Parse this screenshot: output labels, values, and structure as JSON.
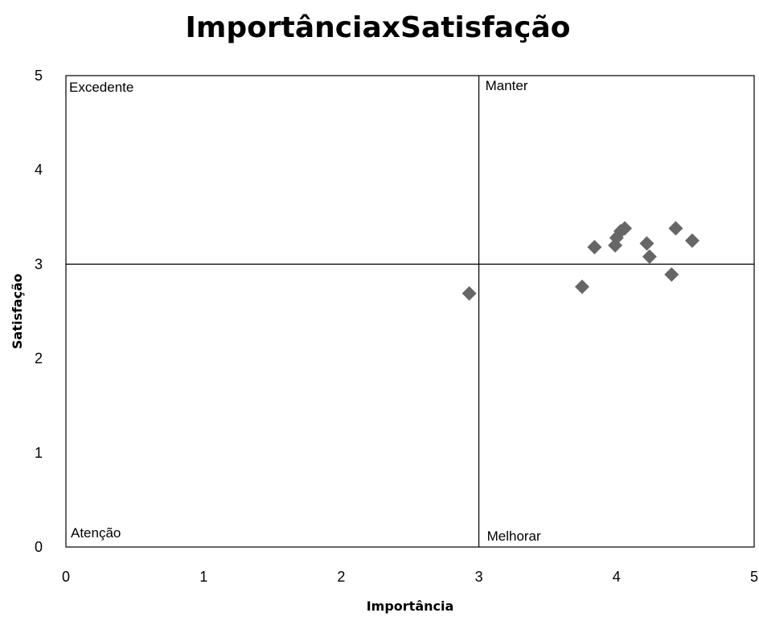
{
  "chart_data": {
    "type": "scatter",
    "title": "ImportânciaxSatisfação",
    "xlabel": "Importância",
    "ylabel": "Satisfação",
    "xlim": [
      0,
      5
    ],
    "ylim": [
      0,
      5
    ],
    "x_ticks": [
      "0",
      "1",
      "2",
      "3",
      "4",
      "5"
    ],
    "y_ticks": [
      "0",
      "1",
      "2",
      "3",
      "4",
      "5"
    ],
    "reference_lines": {
      "x": 3,
      "y": 3
    },
    "quadrant_labels": {
      "top_left": "Excedente",
      "top_right": "Manter",
      "bottom_left": "Atenção",
      "bottom_right": "Melhorar"
    },
    "marker": "diamond",
    "marker_color": "#666666",
    "points": [
      {
        "x": 2.93,
        "y": 2.69
      },
      {
        "x": 3.75,
        "y": 2.76
      },
      {
        "x": 3.84,
        "y": 3.18
      },
      {
        "x": 3.99,
        "y": 3.2
      },
      {
        "x": 4.0,
        "y": 3.28
      },
      {
        "x": 4.03,
        "y": 3.35
      },
      {
        "x": 4.06,
        "y": 3.38
      },
      {
        "x": 4.22,
        "y": 3.22
      },
      {
        "x": 4.24,
        "y": 3.08
      },
      {
        "x": 4.4,
        "y": 2.89
      },
      {
        "x": 4.43,
        "y": 3.38
      },
      {
        "x": 4.55,
        "y": 3.25
      }
    ]
  }
}
